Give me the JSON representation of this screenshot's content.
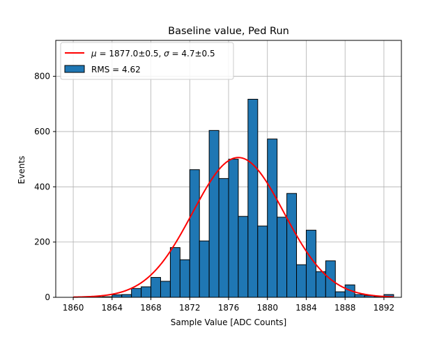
{
  "chart_data": {
    "type": "bar",
    "title": "Baseline value, Ped Run",
    "xlabel": "Sample Value [ADC Counts]",
    "ylabel": "Events",
    "xlim": [
      1858.2,
      1893.8
    ],
    "ylim": [
      0,
      930
    ],
    "x_ticks": [
      1860,
      1864,
      1868,
      1872,
      1876,
      1880,
      1884,
      1888,
      1892
    ],
    "y_ticks": [
      0,
      200,
      400,
      600,
      800
    ],
    "grid": true,
    "legend_position": "top-left",
    "bin_width": 1,
    "bins": [
      {
        "x": 1860,
        "value": 0
      },
      {
        "x": 1861,
        "value": 0
      },
      {
        "x": 1862,
        "value": 1
      },
      {
        "x": 1863,
        "value": 2
      },
      {
        "x": 1864,
        "value": 9
      },
      {
        "x": 1865,
        "value": 10
      },
      {
        "x": 1866,
        "value": 32
      },
      {
        "x": 1867,
        "value": 38
      },
      {
        "x": 1868,
        "value": 72
      },
      {
        "x": 1869,
        "value": 58
      },
      {
        "x": 1870,
        "value": 180
      },
      {
        "x": 1871,
        "value": 136
      },
      {
        "x": 1872,
        "value": 462
      },
      {
        "x": 1873,
        "value": 204
      },
      {
        "x": 1874,
        "value": 604
      },
      {
        "x": 1875,
        "value": 430
      },
      {
        "x": 1876,
        "value": 500
      },
      {
        "x": 1877,
        "value": 293
      },
      {
        "x": 1878,
        "value": 717
      },
      {
        "x": 1879,
        "value": 258
      },
      {
        "x": 1880,
        "value": 573
      },
      {
        "x": 1881,
        "value": 290
      },
      {
        "x": 1882,
        "value": 376
      },
      {
        "x": 1883,
        "value": 118
      },
      {
        "x": 1884,
        "value": 243
      },
      {
        "x": 1885,
        "value": 93
      },
      {
        "x": 1886,
        "value": 132
      },
      {
        "x": 1887,
        "value": 20
      },
      {
        "x": 1888,
        "value": 45
      },
      {
        "x": 1889,
        "value": 10
      },
      {
        "x": 1890,
        "value": 6
      },
      {
        "x": 1891,
        "value": 3
      },
      {
        "x": 1892,
        "value": 10
      },
      {
        "x": 1893,
        "value": 0
      }
    ],
    "series": [
      {
        "name": "RMS = 4.62",
        "kind": "histogram",
        "color": "#1f77b4"
      },
      {
        "name": "μ = 1877.0±0.5, σ = 4.7±0.5",
        "kind": "gaussian-fit",
        "color": "#ff0000",
        "mu": 1877.0,
        "sigma": 4.7,
        "amplitude": 506
      }
    ]
  },
  "legend": {
    "fit_prefix_mu": "μ",
    "fit_mid": " = 1877.0±0.5, ",
    "fit_prefix_sigma": "σ",
    "fit_end": " = 4.7±0.5",
    "hist_label": "RMS = 4.62"
  }
}
